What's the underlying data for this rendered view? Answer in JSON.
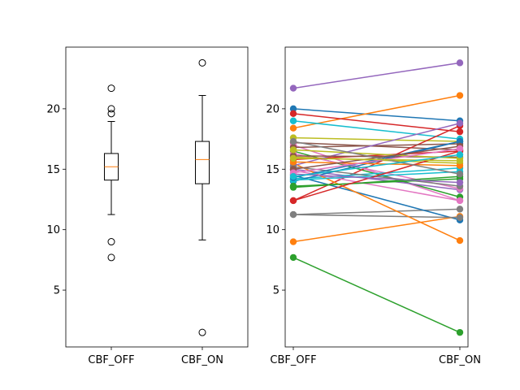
{
  "chart_data": [
    {
      "type": "box",
      "categories": [
        "CBF_OFF",
        "CBF_ON"
      ],
      "ylim": [
        0.3,
        25.1
      ],
      "yticks": [
        5,
        10,
        15,
        20
      ],
      "boxes": [
        {
          "name": "CBF_OFF",
          "q1": 14.1,
          "median": 15.2,
          "q3": 16.3,
          "whisker_low": 11.25,
          "whisker_high": 18.95,
          "fliers": [
            21.7,
            20.0,
            19.6,
            9.0,
            7.7
          ]
        },
        {
          "name": "CBF_ON",
          "q1": 13.8,
          "median": 15.8,
          "q3": 17.3,
          "whisker_low": 9.15,
          "whisker_high": 21.1,
          "fliers": [
            23.8,
            1.5
          ]
        }
      ],
      "median_color": "#ff7f0e"
    },
    {
      "type": "line",
      "categories": [
        "CBF_OFF",
        "CBF_ON"
      ],
      "ylim": [
        0.3,
        25.1
      ],
      "yticks": [
        5,
        10,
        15,
        20
      ],
      "palette": [
        "#1f77b4",
        "#ff7f0e",
        "#2ca02c",
        "#d62728",
        "#9467bd",
        "#8c564b",
        "#e377c2",
        "#7f7f7f",
        "#bcbd22",
        "#17becf"
      ],
      "series": [
        {
          "values": [
            20.0,
            19.0
          ]
        },
        {
          "values": [
            18.4,
            21.1
          ]
        },
        {
          "values": [
            7.7,
            1.5
          ]
        },
        {
          "values": [
            19.6,
            18.1
          ]
        },
        {
          "values": [
            21.7,
            23.8
          ]
        },
        {
          "values": [
            17.2,
            16.6
          ]
        },
        {
          "values": [
            17.0,
            12.4
          ]
        },
        {
          "values": [
            11.25,
            11.7
          ]
        },
        {
          "values": [
            17.6,
            17.3
          ]
        },
        {
          "values": [
            19.0,
            17.5
          ]
        },
        {
          "values": [
            14.5,
            10.8
          ]
        },
        {
          "values": [
            9.0,
            11.1
          ]
        },
        {
          "values": [
            16.5,
            12.7
          ]
        },
        {
          "values": [
            12.4,
            18.6
          ]
        },
        {
          "values": [
            15.0,
            13.3
          ]
        },
        {
          "values": [
            16.8,
            17.1
          ]
        },
        {
          "values": [
            16.3,
            13.4
          ]
        },
        {
          "values": [
            11.25,
            11.0
          ]
        },
        {
          "values": [
            16.0,
            15.5
          ]
        },
        {
          "values": [
            14.2,
            15.1
          ]
        },
        {
          "values": [
            14.0,
            17.3
          ]
        },
        {
          "values": [
            15.5,
            9.1
          ]
        },
        {
          "values": [
            13.5,
            14.4
          ]
        },
        {
          "values": [
            15.8,
            16.5
          ]
        },
        {
          "values": [
            15.3,
            18.8
          ]
        },
        {
          "values": [
            16.1,
            16.0
          ]
        },
        {
          "values": [
            14.9,
            12.4
          ]
        },
        {
          "values": [
            15.2,
            13.6
          ]
        },
        {
          "values": [
            16.6,
            15.9
          ]
        },
        {
          "values": [
            14.1,
            14.8
          ]
        },
        {
          "values": [
            14.3,
            17.3
          ]
        },
        {
          "values": [
            15.6,
            15.3
          ]
        },
        {
          "values": [
            13.6,
            14.2
          ]
        },
        {
          "values": [
            12.4,
            16.5
          ]
        },
        {
          "values": [
            14.6,
            13.9
          ]
        },
        {
          "values": [
            15.0,
            16.9
          ]
        },
        {
          "values": [
            14.7,
            16.7
          ]
        },
        {
          "values": [
            17.3,
            14.6
          ]
        },
        {
          "values": [
            15.9,
            15.7
          ]
        },
        {
          "values": [
            14.4,
            16.2
          ]
        }
      ]
    }
  ]
}
